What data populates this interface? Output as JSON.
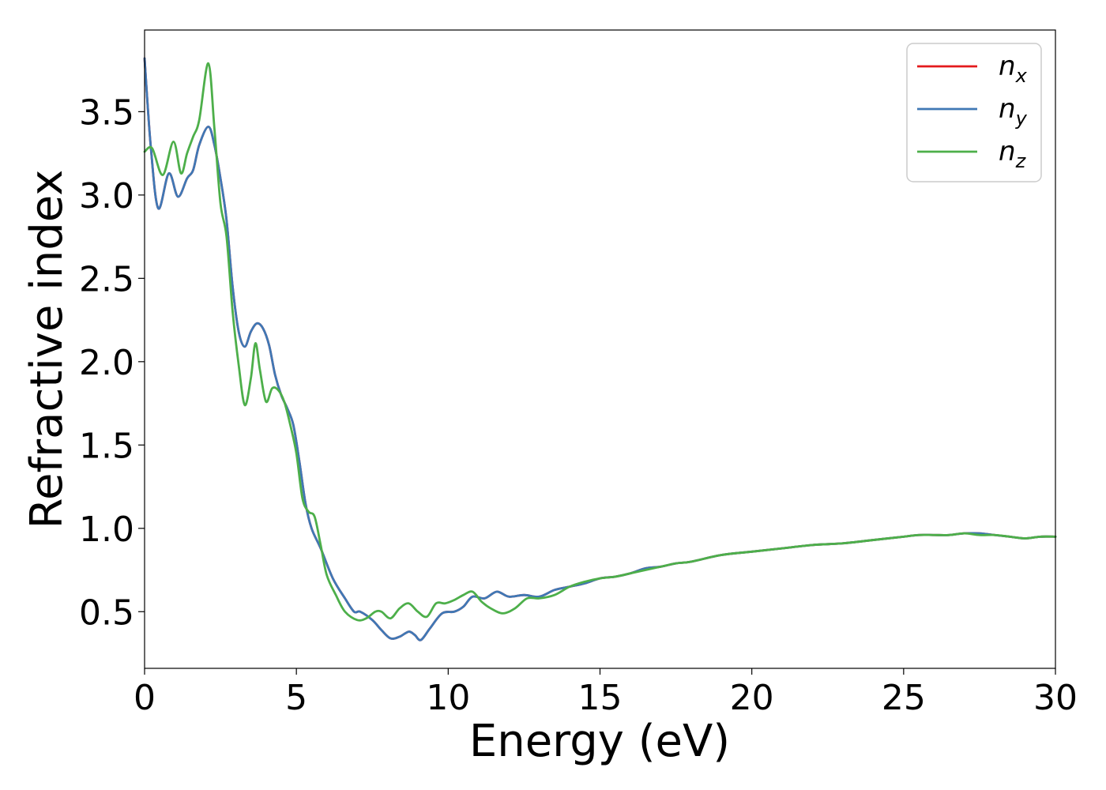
{
  "chart_data": {
    "type": "line",
    "xlabel": "Energy (eV)",
    "ylabel": "Refractive index",
    "xlim": [
      0,
      30
    ],
    "ylim": [
      0.16,
      3.99
    ],
    "xticks": [
      0,
      5,
      10,
      15,
      20,
      25,
      30
    ],
    "xtick_labels": [
      "0",
      "5",
      "10",
      "15",
      "20",
      "25",
      "30"
    ],
    "yticks": [
      0.5,
      1.0,
      1.5,
      2.0,
      2.5,
      3.0,
      3.5
    ],
    "ytick_labels": [
      "0.5",
      "1.0",
      "1.5",
      "2.0",
      "2.5",
      "3.0",
      "3.5"
    ],
    "grid": false,
    "legend_position": "top-right",
    "series": [
      {
        "name": "n",
        "subscript": "x",
        "color": "#e41a1c",
        "x": [
          0,
          0.2,
          0.45,
          0.8,
          1.1,
          1.4,
          1.6,
          1.8,
          2.1,
          2.3,
          2.5,
          2.7,
          2.9,
          3.1,
          3.3,
          3.5,
          3.7,
          3.9,
          4.1,
          4.3,
          4.5,
          4.7,
          4.9,
          5.1,
          5.3,
          5.5,
          5.8,
          6.2,
          6.6,
          6.9,
          7.1,
          7.5,
          7.8,
          8.1,
          8.4,
          8.7,
          8.9,
          9.1,
          9.4,
          9.8,
          10.2,
          10.5,
          10.8,
          11.2,
          11.6,
          12.0,
          12.5,
          13.0,
          13.5,
          14.0,
          14.5,
          15.0,
          15.5,
          16.0,
          16.5,
          17.0,
          17.5,
          18.0,
          19.0,
          20.0,
          21.0,
          22.0,
          23.0,
          24.0,
          25.0,
          25.5,
          26.0,
          26.5,
          27.0,
          27.5,
          28.0,
          28.5,
          29.0,
          29.5,
          30.0
        ],
        "y": [
          3.82,
          3.3,
          2.92,
          3.13,
          2.99,
          3.1,
          3.15,
          3.3,
          3.41,
          3.3,
          3.1,
          2.85,
          2.45,
          2.18,
          2.09,
          2.18,
          2.23,
          2.2,
          2.1,
          1.92,
          1.8,
          1.72,
          1.62,
          1.4,
          1.15,
          1.0,
          0.88,
          0.7,
          0.58,
          0.5,
          0.5,
          0.45,
          0.39,
          0.34,
          0.35,
          0.38,
          0.36,
          0.33,
          0.4,
          0.49,
          0.5,
          0.53,
          0.59,
          0.58,
          0.62,
          0.59,
          0.6,
          0.59,
          0.63,
          0.65,
          0.67,
          0.7,
          0.71,
          0.73,
          0.76,
          0.77,
          0.79,
          0.8,
          0.84,
          0.86,
          0.88,
          0.9,
          0.91,
          0.93,
          0.95,
          0.96,
          0.96,
          0.96,
          0.97,
          0.97,
          0.96,
          0.95,
          0.94,
          0.95,
          0.95
        ]
      },
      {
        "name": "n",
        "subscript": "y",
        "color": "#3f78b5",
        "x": [
          0,
          0.2,
          0.45,
          0.8,
          1.1,
          1.4,
          1.6,
          1.8,
          2.1,
          2.3,
          2.5,
          2.7,
          2.9,
          3.1,
          3.3,
          3.5,
          3.7,
          3.9,
          4.1,
          4.3,
          4.5,
          4.7,
          4.9,
          5.1,
          5.3,
          5.5,
          5.8,
          6.2,
          6.6,
          6.9,
          7.1,
          7.5,
          7.8,
          8.1,
          8.4,
          8.7,
          8.9,
          9.1,
          9.4,
          9.8,
          10.2,
          10.5,
          10.8,
          11.2,
          11.6,
          12.0,
          12.5,
          13.0,
          13.5,
          14.0,
          14.5,
          15.0,
          15.5,
          16.0,
          16.5,
          17.0,
          17.5,
          18.0,
          19.0,
          20.0,
          21.0,
          22.0,
          23.0,
          24.0,
          25.0,
          25.5,
          26.0,
          26.5,
          27.0,
          27.5,
          28.0,
          28.5,
          29.0,
          29.5,
          30.0
        ],
        "y": [
          3.82,
          3.3,
          2.92,
          3.13,
          2.99,
          3.1,
          3.15,
          3.3,
          3.41,
          3.3,
          3.1,
          2.85,
          2.45,
          2.18,
          2.09,
          2.18,
          2.23,
          2.2,
          2.1,
          1.92,
          1.8,
          1.72,
          1.62,
          1.4,
          1.15,
          1.0,
          0.88,
          0.7,
          0.58,
          0.5,
          0.5,
          0.45,
          0.39,
          0.34,
          0.35,
          0.38,
          0.36,
          0.33,
          0.4,
          0.49,
          0.5,
          0.53,
          0.59,
          0.58,
          0.62,
          0.59,
          0.6,
          0.59,
          0.63,
          0.65,
          0.67,
          0.7,
          0.71,
          0.73,
          0.76,
          0.77,
          0.79,
          0.8,
          0.84,
          0.86,
          0.88,
          0.9,
          0.91,
          0.93,
          0.95,
          0.96,
          0.96,
          0.96,
          0.97,
          0.97,
          0.96,
          0.95,
          0.94,
          0.95,
          0.95
        ]
      },
      {
        "name": "n",
        "subscript": "z",
        "color": "#4daf4a",
        "x": [
          0,
          0.25,
          0.6,
          0.95,
          1.2,
          1.4,
          1.6,
          1.8,
          2.1,
          2.3,
          2.5,
          2.7,
          2.9,
          3.1,
          3.3,
          3.5,
          3.65,
          3.8,
          4.0,
          4.2,
          4.4,
          4.6,
          4.8,
          5.0,
          5.2,
          5.4,
          5.6,
          5.8,
          6.0,
          6.3,
          6.6,
          7.0,
          7.3,
          7.6,
          7.8,
          8.1,
          8.4,
          8.7,
          9.0,
          9.3,
          9.6,
          9.9,
          10.2,
          10.5,
          10.8,
          11.1,
          11.4,
          11.8,
          12.2,
          12.6,
          13.0,
          13.5,
          14.0,
          14.5,
          15.0,
          15.5,
          16.0,
          16.5,
          17.0,
          17.5,
          18.0,
          19.0,
          20.0,
          21.0,
          22.0,
          23.0,
          24.0,
          25.0,
          25.5,
          26.0,
          26.5,
          27.0,
          27.5,
          28.0,
          28.5,
          29.0,
          29.5,
          30.0
        ],
        "y": [
          3.26,
          3.28,
          3.12,
          3.32,
          3.13,
          3.25,
          3.35,
          3.45,
          3.79,
          3.4,
          2.95,
          2.75,
          2.3,
          1.98,
          1.74,
          1.9,
          2.11,
          1.95,
          1.76,
          1.84,
          1.83,
          1.76,
          1.62,
          1.45,
          1.18,
          1.1,
          1.07,
          0.9,
          0.72,
          0.6,
          0.5,
          0.45,
          0.46,
          0.5,
          0.5,
          0.46,
          0.52,
          0.55,
          0.5,
          0.47,
          0.55,
          0.55,
          0.57,
          0.6,
          0.62,
          0.56,
          0.52,
          0.49,
          0.52,
          0.58,
          0.58,
          0.6,
          0.65,
          0.68,
          0.7,
          0.71,
          0.73,
          0.75,
          0.77,
          0.79,
          0.8,
          0.84,
          0.86,
          0.88,
          0.9,
          0.91,
          0.93,
          0.95,
          0.96,
          0.96,
          0.96,
          0.97,
          0.96,
          0.96,
          0.95,
          0.94,
          0.95,
          0.95
        ]
      }
    ]
  }
}
